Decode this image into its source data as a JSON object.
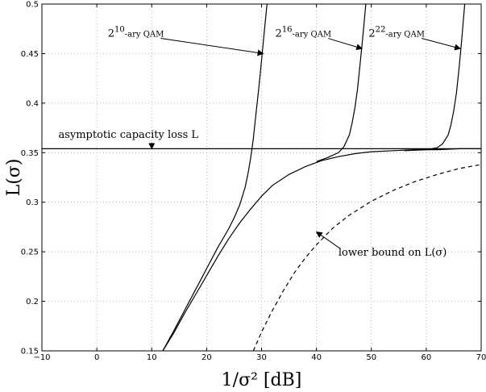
{
  "chart_data": {
    "type": "line",
    "xlabel": "1/σ² [dB]",
    "ylabel": "L(σ)",
    "xlim": [
      -10,
      70
    ],
    "ylim": [
      0.15,
      0.5
    ],
    "x_ticks": [
      -10,
      0,
      10,
      20,
      30,
      40,
      50,
      60,
      70
    ],
    "y_ticks": [
      0.15,
      0.2,
      0.25,
      0.3,
      0.35,
      0.4,
      0.45,
      0.5
    ],
    "x_tick_labels": [
      "−10",
      "0",
      "10",
      "20",
      "30",
      "40",
      "50",
      "60",
      "70"
    ],
    "y_tick_labels": [
      "0.15",
      "0.2",
      "0.25",
      "0.3",
      "0.35",
      "0.4",
      "0.45",
      "0.5"
    ],
    "grid": true,
    "series": [
      {
        "key": "asymptote",
        "style": "solid",
        "x": [
          -10,
          70
        ],
        "y": [
          0.354,
          0.354
        ]
      },
      {
        "key": "limit",
        "style": "solid",
        "x": [
          12,
          14,
          16,
          18,
          20,
          22,
          24,
          26,
          28,
          30,
          32,
          35,
          38,
          41,
          44,
          47,
          50,
          54,
          58,
          62,
          66,
          70
        ],
        "y": [
          0.15,
          0.168,
          0.188,
          0.207,
          0.226,
          0.245,
          0.263,
          0.279,
          0.293,
          0.306,
          0.317,
          0.328,
          0.336,
          0.342,
          0.346,
          0.349,
          0.351,
          0.352,
          0.353,
          0.353,
          0.354,
          0.354
        ]
      },
      {
        "key": "qam10",
        "style": "solid",
        "x": [
          12,
          14,
          16,
          18,
          20,
          22,
          24,
          25,
          26,
          27,
          27.5,
          28,
          28.5,
          29,
          29.5,
          30,
          30.5,
          31
        ],
        "y": [
          0.15,
          0.17,
          0.191,
          0.212,
          0.233,
          0.254,
          0.273,
          0.284,
          0.297,
          0.315,
          0.328,
          0.344,
          0.364,
          0.39,
          0.415,
          0.443,
          0.472,
          0.5
        ]
      },
      {
        "key": "qam16",
        "style": "solid",
        "x": [
          40,
          42,
          44,
          45,
          46,
          46.5,
          47,
          47.5,
          48,
          48.5,
          49
        ],
        "y": [
          0.341,
          0.345,
          0.35,
          0.356,
          0.368,
          0.38,
          0.395,
          0.415,
          0.442,
          0.47,
          0.5
        ]
      },
      {
        "key": "qam22",
        "style": "solid",
        "x": [
          56,
          60,
          62,
          63,
          64,
          64.5,
          65,
          65.5,
          66,
          66.5,
          67
        ],
        "y": [
          0.352,
          0.353,
          0.355,
          0.359,
          0.368,
          0.378,
          0.392,
          0.41,
          0.437,
          0.467,
          0.5
        ]
      },
      {
        "key": "lower_bound",
        "style": "dashed",
        "x": [
          28.5,
          30,
          32,
          34,
          36,
          38,
          40,
          43,
          46,
          50,
          54,
          58,
          62,
          66,
          70
        ],
        "y": [
          0.15,
          0.169,
          0.191,
          0.211,
          0.229,
          0.244,
          0.257,
          0.274,
          0.287,
          0.301,
          0.312,
          0.321,
          0.328,
          0.334,
          0.338
        ]
      }
    ],
    "annotations": [
      {
        "key": "asymptote",
        "text": "asymptotic capacity loss L",
        "arrow_to": [
          10,
          0.354
        ],
        "text_at": [
          -7,
          0.365
        ]
      },
      {
        "key": "qam10",
        "base": "2",
        "sup": "10",
        "suffix": "-ary QAM",
        "arrow_to": [
          30.3,
          0.45
        ],
        "text_at": [
          2,
          0.467
        ]
      },
      {
        "key": "qam16",
        "base": "2",
        "sup": "16",
        "suffix": "-ary QAM",
        "arrow_to": [
          48.3,
          0.455
        ],
        "text_at": [
          32.5,
          0.467
        ]
      },
      {
        "key": "qam22",
        "base": "2",
        "sup": "22",
        "suffix": "-ary QAM",
        "arrow_to": [
          66.2,
          0.455
        ],
        "text_at": [
          49.5,
          0.467
        ]
      },
      {
        "key": "lower_bound",
        "text": "lower bound on L(σ)",
        "arrow_to": [
          40,
          0.27
        ],
        "text_at": [
          44,
          0.246
        ]
      }
    ]
  }
}
